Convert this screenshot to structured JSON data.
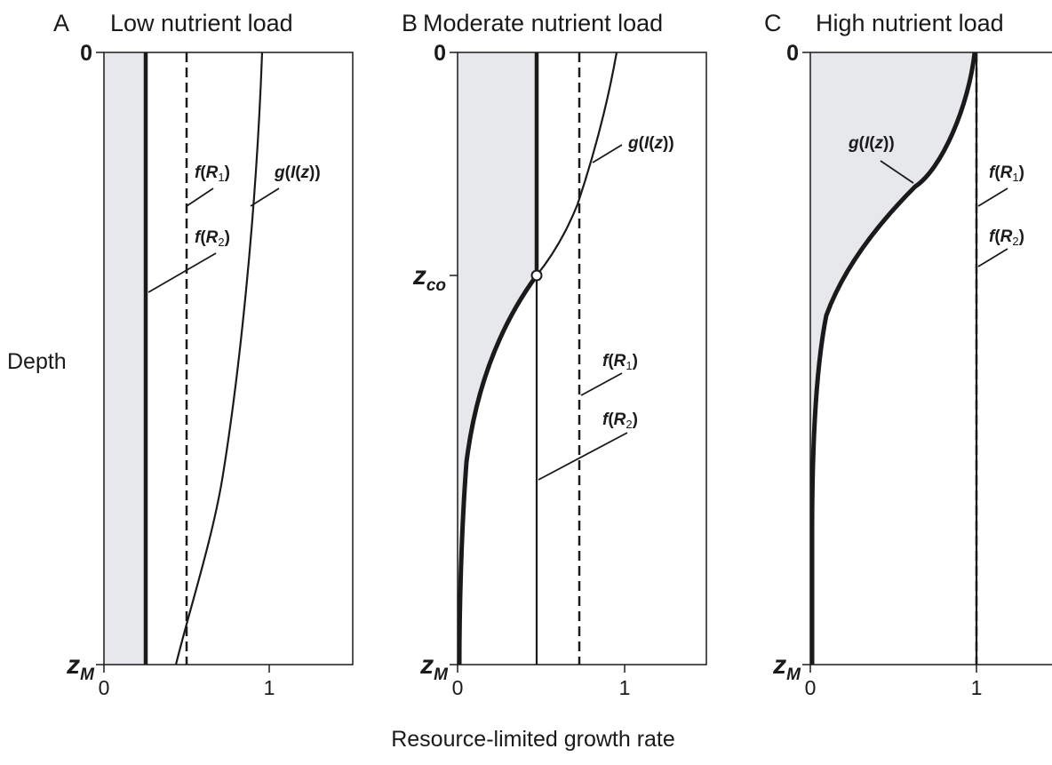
{
  "chart_data": {
    "type": "line",
    "ylabel": "Depth",
    "xlabel": "Resource-limited growth rate",
    "xlim": [
      0,
      1.5
    ],
    "y_ticks": {
      "top": "0",
      "bottom": "z_M"
    },
    "x_ticks": [
      "0",
      "1"
    ],
    "colors": {
      "shading": "#e6e8eb",
      "ink": "#1a1a1a"
    },
    "panels": [
      {
        "letter": "A",
        "title": "Low nutrient load",
        "f_R1": {
          "label": "f(R1)",
          "x": 0.5,
          "style": "dashed"
        },
        "f_R2": {
          "label": "f(R2)",
          "x": 0.25,
          "style": "thick"
        },
        "g": {
          "label": "g(I(z))",
          "depth": [
            0,
            0.25,
            0.5,
            0.75,
            1.0
          ],
          "x": [
            0.95,
            0.86,
            0.75,
            0.61,
            0.44
          ]
        },
        "shaded_region": "between 0 and f(R2) over full depth"
      },
      {
        "letter": "B",
        "title": "Moderate nutrient load",
        "f_R1": {
          "label": "f(R1)",
          "x": 0.75,
          "style": "dashed"
        },
        "f_R2": {
          "label": "f(R2)",
          "x": 0.5,
          "style": "thick above z_co, thin below"
        },
        "g": {
          "label": "g(I(z))",
          "depth": [
            0,
            0.1,
            0.2,
            0.3,
            0.36,
            0.45,
            0.55,
            0.65,
            0.75,
            0.85,
            0.95,
            1.0
          ],
          "x": [
            0.96,
            0.86,
            0.73,
            0.58,
            0.48,
            0.33,
            0.2,
            0.11,
            0.05,
            0.02,
            0.005,
            0.0
          ]
        },
        "crossover": {
          "label": "z_co",
          "depth": 0.36,
          "x": 0.48
        },
        "shaded_region": "between 0 and min(g, f(R2))"
      },
      {
        "letter": "C",
        "title": "High nutrient load",
        "f_R1": {
          "label": "f(R1)",
          "x": 1.0,
          "style": "dashed"
        },
        "f_R2": {
          "label": "f(R2)",
          "x": 1.0,
          "style": "thin"
        },
        "g": {
          "label": "g(I(z))",
          "depth": [
            0,
            0.05,
            0.1,
            0.15,
            0.2,
            0.25,
            0.3,
            0.35,
            0.4,
            0.45,
            0.5,
            0.6,
            0.7,
            0.8,
            0.9,
            1.0
          ],
          "x": [
            0.99,
            0.93,
            0.83,
            0.72,
            0.6,
            0.48,
            0.38,
            0.27,
            0.18,
            0.12,
            0.07,
            0.03,
            0.015,
            0.01,
            0.005,
            0.0
          ]
        },
        "shaded_region": "between 0 and g(I(z))"
      }
    ]
  }
}
